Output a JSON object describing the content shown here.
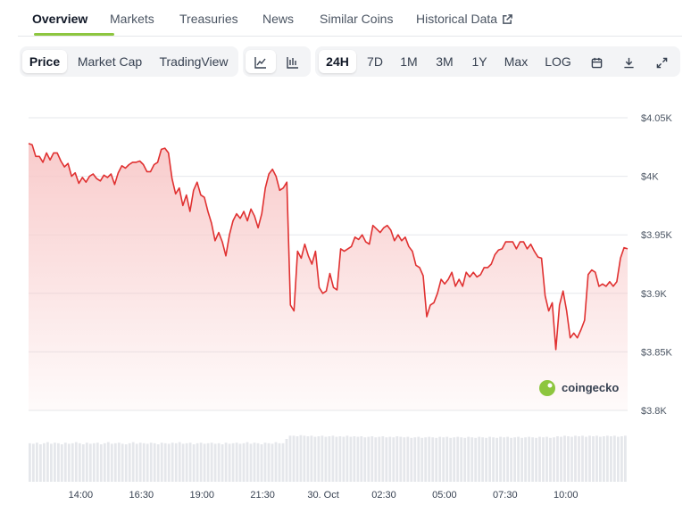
{
  "tabs": [
    {
      "label": "Overview",
      "active": true
    },
    {
      "label": "Markets"
    },
    {
      "label": "Treasuries"
    },
    {
      "label": "News"
    },
    {
      "label": "Similar Coins"
    },
    {
      "label": "Historical Data",
      "icon": "external-link-icon"
    }
  ],
  "chart_type_toggle": [
    {
      "label": "Price",
      "active": true
    },
    {
      "label": "Market Cap"
    },
    {
      "label": "TradingView"
    }
  ],
  "style_toggle": [
    {
      "icon": "line-chart-icon",
      "active": true
    },
    {
      "icon": "candlestick-chart-icon"
    }
  ],
  "ranges": [
    {
      "label": "24H",
      "active": true
    },
    {
      "label": "7D"
    },
    {
      "label": "1M"
    },
    {
      "label": "3M"
    },
    {
      "label": "1Y"
    },
    {
      "label": "Max"
    },
    {
      "label": "LOG"
    }
  ],
  "tool_icons": [
    "calendar-icon",
    "download-icon",
    "expand-icon"
  ],
  "watermark": "coingecko",
  "colors": {
    "line": "#e03131",
    "fill": "#f8c9c9",
    "accent": "#8dc63f"
  },
  "chart_data": {
    "type": "area",
    "y_ticks": [
      "$4.05K",
      "$4K",
      "$3.95K",
      "$3.9K",
      "$3.85K",
      "$3.8K"
    ],
    "y_tick_values": [
      4050,
      4000,
      3950,
      3900,
      3850,
      3800
    ],
    "ylim": [
      3800,
      4050
    ],
    "x_ticks": [
      "14:00",
      "16:30",
      "19:00",
      "21:30",
      "30. Oct",
      "02:30",
      "05:00",
      "07:30",
      "10:00"
    ],
    "x_range_hours": [
      11.85,
      36.55
    ],
    "x_tick_hours": [
      14,
      16.5,
      19,
      21.5,
      24,
      26.5,
      29,
      31.5,
      34
    ],
    "price": [
      4028,
      4027,
      4017,
      4017,
      4012,
      4020,
      4014,
      4020,
      4020,
      4013,
      4008,
      4011,
      4000,
      4003,
      3994,
      3999,
      3995,
      4000,
      4002,
      3998,
      3996,
      4001,
      3999,
      4002,
      3993,
      4003,
      4009,
      4007,
      4010,
      4012,
      4012,
      4013,
      4010,
      4004,
      4004,
      4010,
      4012,
      4023,
      4024,
      4020,
      3998,
      3985,
      3990,
      3975,
      3984,
      3970,
      3988,
      3995,
      3984,
      3982,
      3970,
      3960,
      3945,
      3952,
      3944,
      3932,
      3950,
      3962,
      3968,
      3964,
      3970,
      3962,
      3972,
      3966,
      3956,
      3968,
      3990,
      4002,
      4006,
      4000,
      3988,
      3990,
      3995,
      3890,
      3885,
      3936,
      3930,
      3942,
      3932,
      3925,
      3936,
      3905,
      3900,
      3902,
      3917,
      3905,
      3903,
      3938,
      3936,
      3938,
      3940,
      3948,
      3946,
      3950,
      3944,
      3942,
      3958,
      3955,
      3952,
      3956,
      3958,
      3954,
      3945,
      3950,
      3945,
      3948,
      3940,
      3936,
      3924,
      3922,
      3915,
      3880,
      3890,
      3892,
      3900,
      3912,
      3908,
      3912,
      3918,
      3906,
      3912,
      3906,
      3918,
      3914,
      3918,
      3914,
      3916,
      3922,
      3922,
      3925,
      3933,
      3937,
      3938,
      3944,
      3944,
      3944,
      3938,
      3944,
      3944,
      3938,
      3942,
      3936,
      3931,
      3930,
      3898,
      3885,
      3892,
      3852,
      3890,
      3902,
      3885,
      3862,
      3866,
      3862,
      3869,
      3877,
      3916,
      3920,
      3918,
      3906,
      3908,
      3906,
      3910,
      3906,
      3910,
      3930,
      3939,
      3938
    ],
    "volume": [
      0.72,
      0.71,
      0.73,
      0.7,
      0.72,
      0.74,
      0.71,
      0.73,
      0.72,
      0.7,
      0.73,
      0.71,
      0.72,
      0.74,
      0.72,
      0.7,
      0.73,
      0.71,
      0.72,
      0.73,
      0.7,
      0.72,
      0.74,
      0.71,
      0.72,
      0.73,
      0.71,
      0.7,
      0.72,
      0.74,
      0.71,
      0.73,
      0.72,
      0.71,
      0.73,
      0.72,
      0.7,
      0.73,
      0.72,
      0.71,
      0.73,
      0.72,
      0.74,
      0.71,
      0.72,
      0.73,
      0.7,
      0.72,
      0.73,
      0.71,
      0.72,
      0.73,
      0.71,
      0.72,
      0.7,
      0.73,
      0.71,
      0.72,
      0.73,
      0.71,
      0.72,
      0.74,
      0.71,
      0.73,
      0.72,
      0.7,
      0.73,
      0.72,
      0.71,
      0.74,
      0.72,
      0.72,
      0.8,
      0.86,
      0.86,
      0.85,
      0.87,
      0.86,
      0.85,
      0.86,
      0.84,
      0.85,
      0.86,
      0.84,
      0.85,
      0.86,
      0.84,
      0.85,
      0.84,
      0.86,
      0.84,
      0.85,
      0.84,
      0.85,
      0.83,
      0.84,
      0.85,
      0.83,
      0.84,
      0.85,
      0.83,
      0.84,
      0.83,
      0.85,
      0.84,
      0.83,
      0.84,
      0.82,
      0.83,
      0.84,
      0.82,
      0.83,
      0.84,
      0.83,
      0.82,
      0.84,
      0.83,
      0.84,
      0.82,
      0.83,
      0.84,
      0.83,
      0.82,
      0.84,
      0.83,
      0.82,
      0.84,
      0.83,
      0.82,
      0.84,
      0.83,
      0.82,
      0.84,
      0.83,
      0.84,
      0.82,
      0.83,
      0.84,
      0.82,
      0.83,
      0.84,
      0.83,
      0.82,
      0.84,
      0.83,
      0.84,
      0.82,
      0.83,
      0.85,
      0.84,
      0.86,
      0.85,
      0.84,
      0.86,
      0.85,
      0.86,
      0.84,
      0.86,
      0.85,
      0.86,
      0.84,
      0.85,
      0.86,
      0.85,
      0.86,
      0.84,
      0.85,
      0.86
    ]
  }
}
